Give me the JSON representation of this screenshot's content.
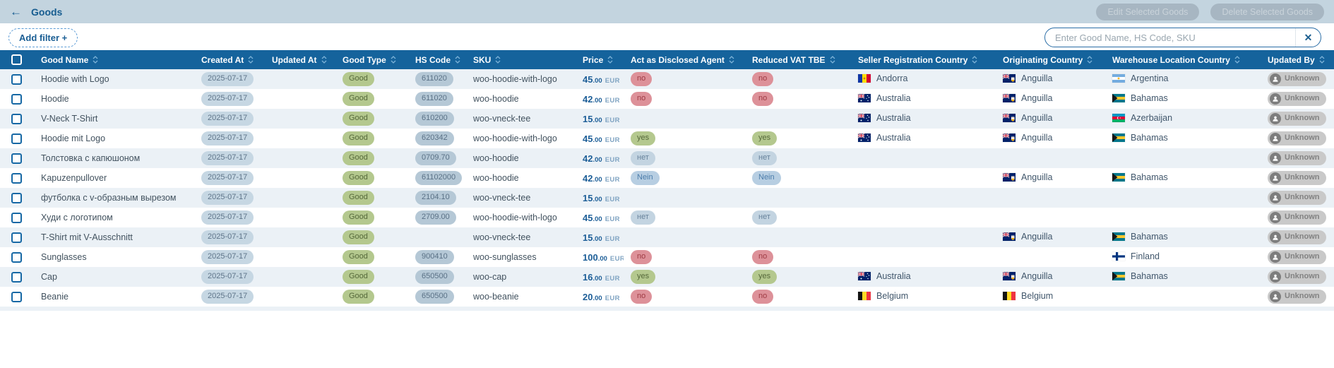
{
  "header": {
    "back_icon": "←",
    "title": "Goods",
    "edit_button": "Edit Selected Goods",
    "delete_button": "Delete Selected Goods"
  },
  "toolbar": {
    "add_filter_label": "Add filter +",
    "search_placeholder": "Enter Good Name, HS Code, SKU",
    "search_value": "",
    "clear_icon": "✕"
  },
  "colors": {
    "topbar_bg": "#c3d4df",
    "table_header_bg": "#15639c",
    "row_alt_bg": "#ebf1f6",
    "accent_blue": "#175d90",
    "pill_positive": "#b4c88e",
    "pill_negative": "#dd9199",
    "pill_neutral": "#c6d7e3"
  },
  "table": {
    "columns": [
      "Good Name",
      "Created At",
      "Updated At",
      "Good Type",
      "HS Code",
      "SKU",
      "Price",
      "Act as Disclosed Agent",
      "Reduced VAT TBE",
      "Seller Registration Country",
      "Originating Country",
      "Warehouse Location Country",
      "Updated By"
    ],
    "rows": [
      {
        "name": "Hoodie with Logo",
        "created_at": "2025-07-17",
        "updated_at": "",
        "good_type": "Good",
        "hs_code": "611020",
        "sku": "woo-hoodie-with-logo",
        "price": {
          "amount": "45",
          "cents": ".00",
          "currency": "EUR"
        },
        "disclosed_agent": {
          "label": "no",
          "variant": "red"
        },
        "reduced_vat": {
          "label": "no",
          "variant": "red"
        },
        "seller_registration_country": {
          "code": "ad",
          "name": "Andorra"
        },
        "originating_country": {
          "code": "ai",
          "name": "Anguilla"
        },
        "warehouse_location_country": {
          "code": "ar",
          "name": "Argentina"
        },
        "updated_by": "Unknown"
      },
      {
        "name": "Hoodie",
        "created_at": "2025-07-17",
        "updated_at": "",
        "good_type": "Good",
        "hs_code": "611020",
        "sku": "woo-hoodie",
        "price": {
          "amount": "42",
          "cents": ".00",
          "currency": "EUR"
        },
        "disclosed_agent": {
          "label": "no",
          "variant": "red"
        },
        "reduced_vat": {
          "label": "no",
          "variant": "red"
        },
        "seller_registration_country": {
          "code": "au",
          "name": "Australia"
        },
        "originating_country": {
          "code": "ai",
          "name": "Anguilla"
        },
        "warehouse_location_country": {
          "code": "bs",
          "name": "Bahamas"
        },
        "updated_by": "Unknown"
      },
      {
        "name": "V-Neck T-Shirt",
        "created_at": "2025-07-17",
        "updated_at": "",
        "good_type": "Good",
        "hs_code": "610200",
        "sku": "woo-vneck-tee",
        "price": {
          "amount": "15",
          "cents": ".00",
          "currency": "EUR"
        },
        "disclosed_agent": null,
        "reduced_vat": null,
        "seller_registration_country": {
          "code": "au",
          "name": "Australia"
        },
        "originating_country": {
          "code": "ai",
          "name": "Anguilla"
        },
        "warehouse_location_country": {
          "code": "az",
          "name": "Azerbaijan"
        },
        "updated_by": "Unknown"
      },
      {
        "name": "Hoodie mit Logo",
        "created_at": "2025-07-17",
        "updated_at": "",
        "good_type": "Good",
        "hs_code": "620342",
        "sku": "woo-hoodie-with-logo",
        "price": {
          "amount": "45",
          "cents": ".00",
          "currency": "EUR"
        },
        "disclosed_agent": {
          "label": "yes",
          "variant": "green"
        },
        "reduced_vat": {
          "label": "yes",
          "variant": "green"
        },
        "seller_registration_country": {
          "code": "au",
          "name": "Australia"
        },
        "originating_country": {
          "code": "ai",
          "name": "Anguilla"
        },
        "warehouse_location_country": {
          "code": "bs",
          "name": "Bahamas"
        },
        "updated_by": "Unknown"
      },
      {
        "name": "Толстовка с капюшоном",
        "created_at": "2025-07-17",
        "updated_at": "",
        "good_type": "Good",
        "hs_code": "0709.70",
        "sku": "woo-hoodie",
        "price": {
          "amount": "42",
          "cents": ".00",
          "currency": "EUR"
        },
        "disclosed_agent": {
          "label": "нет",
          "variant": "gray"
        },
        "reduced_vat": {
          "label": "нет",
          "variant": "gray"
        },
        "seller_registration_country": null,
        "originating_country": null,
        "warehouse_location_country": null,
        "updated_by": "Unknown"
      },
      {
        "name": "Kapuzenpullover",
        "created_at": "2025-07-17",
        "updated_at": "",
        "good_type": "Good",
        "hs_code": "61102000",
        "sku": "woo-hoodie",
        "price": {
          "amount": "42",
          "cents": ".00",
          "currency": "EUR"
        },
        "disclosed_agent": {
          "label": "Nein",
          "variant": "blue"
        },
        "reduced_vat": {
          "label": "Nein",
          "variant": "blue"
        },
        "seller_registration_country": null,
        "originating_country": {
          "code": "ai",
          "name": "Anguilla"
        },
        "warehouse_location_country": {
          "code": "bs",
          "name": "Bahamas"
        },
        "updated_by": "Unknown"
      },
      {
        "name": "футболка с v-образным вырезом",
        "created_at": "2025-07-17",
        "updated_at": "",
        "good_type": "Good",
        "hs_code": "2104.10",
        "sku": "woo-vneck-tee",
        "price": {
          "amount": "15",
          "cents": ".00",
          "currency": "EUR"
        },
        "disclosed_agent": null,
        "reduced_vat": null,
        "seller_registration_country": null,
        "originating_country": null,
        "warehouse_location_country": null,
        "updated_by": "Unknown"
      },
      {
        "name": "Худи с логотипом",
        "created_at": "2025-07-17",
        "updated_at": "",
        "good_type": "Good",
        "hs_code": "2709.00",
        "sku": "woo-hoodie-with-logo",
        "price": {
          "amount": "45",
          "cents": ".00",
          "currency": "EUR"
        },
        "disclosed_agent": {
          "label": "нет",
          "variant": "gray"
        },
        "reduced_vat": {
          "label": "нет",
          "variant": "gray"
        },
        "seller_registration_country": null,
        "originating_country": null,
        "warehouse_location_country": null,
        "updated_by": "Unknown"
      },
      {
        "name": "T-Shirt mit V-Ausschnitt",
        "created_at": "2025-07-17",
        "updated_at": "",
        "good_type": "Good",
        "hs_code": "",
        "sku": "woo-vneck-tee",
        "price": {
          "amount": "15",
          "cents": ".00",
          "currency": "EUR"
        },
        "disclosed_agent": null,
        "reduced_vat": null,
        "seller_registration_country": null,
        "originating_country": {
          "code": "ai",
          "name": "Anguilla"
        },
        "warehouse_location_country": {
          "code": "bs",
          "name": "Bahamas"
        },
        "updated_by": "Unknown"
      },
      {
        "name": "Sunglasses",
        "created_at": "2025-07-17",
        "updated_at": "",
        "good_type": "Good",
        "hs_code": "900410",
        "sku": "woo-sunglasses",
        "price": {
          "amount": "100",
          "cents": ".00",
          "currency": "EUR"
        },
        "disclosed_agent": {
          "label": "no",
          "variant": "red"
        },
        "reduced_vat": {
          "label": "no",
          "variant": "red"
        },
        "seller_registration_country": null,
        "originating_country": null,
        "warehouse_location_country": {
          "code": "fi",
          "name": "Finland"
        },
        "updated_by": "Unknown"
      },
      {
        "name": "Cap",
        "created_at": "2025-07-17",
        "updated_at": "",
        "good_type": "Good",
        "hs_code": "650500",
        "sku": "woo-cap",
        "price": {
          "amount": "16",
          "cents": ".00",
          "currency": "EUR"
        },
        "disclosed_agent": {
          "label": "yes",
          "variant": "green"
        },
        "reduced_vat": {
          "label": "yes",
          "variant": "green"
        },
        "seller_registration_country": {
          "code": "au",
          "name": "Australia"
        },
        "originating_country": {
          "code": "ai",
          "name": "Anguilla"
        },
        "warehouse_location_country": {
          "code": "bs",
          "name": "Bahamas"
        },
        "updated_by": "Unknown"
      },
      {
        "name": "Beanie",
        "created_at": "2025-07-17",
        "updated_at": "",
        "good_type": "Good",
        "hs_code": "650500",
        "sku": "woo-beanie",
        "price": {
          "amount": "20",
          "cents": ".00",
          "currency": "EUR"
        },
        "disclosed_agent": {
          "label": "no",
          "variant": "red"
        },
        "reduced_vat": {
          "label": "no",
          "variant": "red"
        },
        "seller_registration_country": {
          "code": "be",
          "name": "Belgium"
        },
        "originating_country": {
          "code": "be",
          "name": "Belgium"
        },
        "warehouse_location_country": null,
        "updated_by": "Unknown"
      }
    ]
  }
}
